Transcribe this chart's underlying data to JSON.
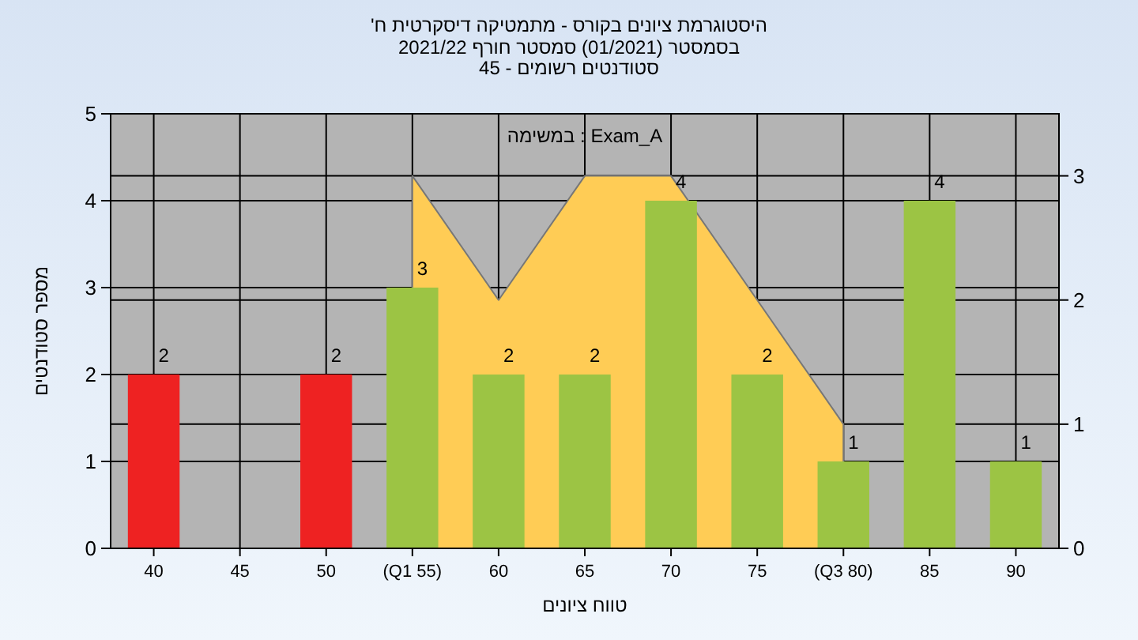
{
  "chart_data": {
    "type": "bar",
    "title": "היסטוגרמת ציונים בקורס - מתמטיקה דיסקרטית ח'",
    "subtitle": "בסמסטר (01/2021) סמסטר חורף 2021/22\nסטודנטים רשומים - 45",
    "xlabel": "טווח ציונים",
    "ylabel": "מספר סטודנטים",
    "annotations": [
      "במשימה : Exam_A"
    ],
    "categories": [
      "40",
      "45",
      "50",
      "(Q1 55)",
      "60",
      "65",
      "70",
      "75",
      "(Q3 80)",
      "85",
      "90"
    ],
    "series": [
      {
        "type": "area",
        "axis": "y2",
        "color": "#ffcc55",
        "values": [
          null,
          null,
          null,
          3,
          2,
          3,
          3,
          2,
          1,
          null,
          null
        ]
      },
      {
        "colors": [
          "#ee2222",
          "#ee2222",
          "#ee2222",
          "#9cc444",
          "#9cc444",
          "#9cc444",
          "#9cc444",
          "#9cc444",
          "#9cc444",
          "#9cc444",
          "#9cc444"
        ],
        "values": [
          2,
          0,
          2,
          3,
          2,
          2,
          4,
          2,
          1,
          4,
          1
        ],
        "value_labels": [
          "2",
          null,
          "2",
          "3",
          "2",
          "2",
          "4",
          "2",
          "1",
          "4",
          "1"
        ]
      }
    ],
    "ylim": [
      0,
      5
    ],
    "yticks": [
      0,
      1,
      2,
      3,
      4,
      5
    ],
    "y2lim": [
      0,
      3.5
    ],
    "y2ticks": [
      0,
      1,
      2,
      3
    ],
    "grid": true
  }
}
